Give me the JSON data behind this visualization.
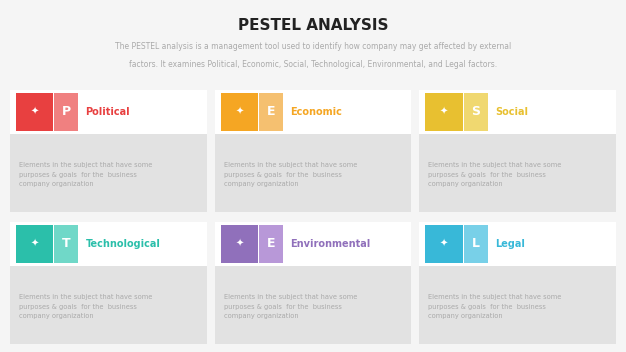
{
  "title": "PESTEL ANALYSIS",
  "subtitle_line1": "The PESTEL analysis is a management tool used to identify how company may get affected by external",
  "subtitle_line2": "factors. It examines Political, Economic, Social, Technological, Environmental, and Legal factors.",
  "background_color": "#f5f5f5",
  "title_color": "#222222",
  "subtitle_color": "#aaaaaa",
  "body_bg": "#e2e2e2",
  "header_bg": "#ffffff",
  "cards": [
    {
      "letter": "P",
      "label": "Political",
      "color": "#e84040",
      "light_color": "#f08080",
      "text_color": "#e84040",
      "body": "Elements in the subject that have some\npurposes & goals  for the  business\ncompany organization",
      "row": 0,
      "col": 0
    },
    {
      "letter": "E",
      "label": "Economic",
      "color": "#f5a623",
      "light_color": "#f5c070",
      "text_color": "#f5a623",
      "body": "Elements in the subject that have some\npurposes & goals  for the  business\ncompany organization",
      "row": 0,
      "col": 1
    },
    {
      "letter": "S",
      "label": "Social",
      "color": "#e8c030",
      "light_color": "#f0d870",
      "text_color": "#e8c030",
      "body": "Elements in the subject that have some\npurposes & goals  for the  business\ncompany organization",
      "row": 0,
      "col": 2
    },
    {
      "letter": "T",
      "label": "Technological",
      "color": "#2bbfaa",
      "light_color": "#70d8c8",
      "text_color": "#2bbfaa",
      "body": "Elements in the subject that have some\npurposes & goals  for the  business\ncompany organization",
      "row": 1,
      "col": 0
    },
    {
      "letter": "E",
      "label": "Environmental",
      "color": "#9070bb",
      "light_color": "#b898d8",
      "text_color": "#9070bb",
      "body": "Elements in the subject that have some\npurposes & goals  for the  business\ncompany organization",
      "row": 1,
      "col": 1
    },
    {
      "letter": "L",
      "label": "Legal",
      "color": "#38b8d8",
      "light_color": "#78d0e8",
      "text_color": "#38b8d8",
      "body": "Elements in the subject that have some\npurposes & goals  for the  business\ncompany organization",
      "row": 1,
      "col": 2
    }
  ]
}
